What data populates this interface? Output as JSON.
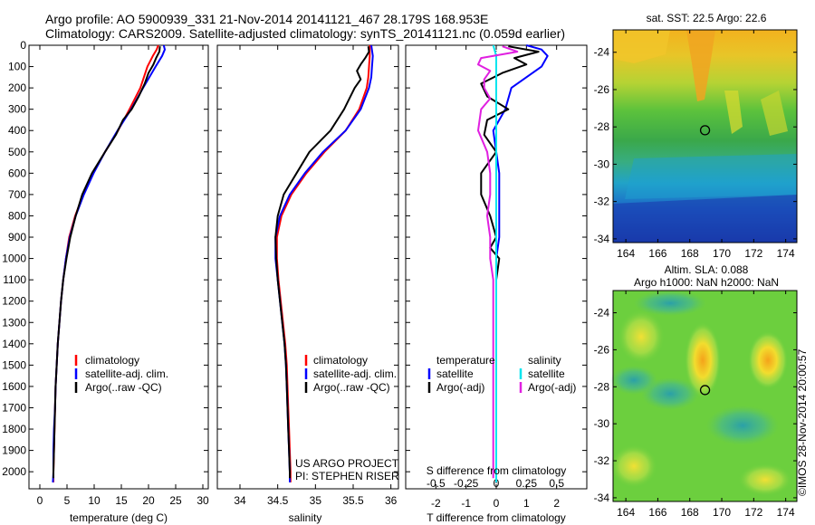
{
  "header": {
    "line1": "Argo profile: AO 5900939_331 21-Nov-2014 20141121_467 28.179S 168.953E",
    "line2": "Climatology: CARS2009. Satellite-adjusted climatology: synTS_20141121.nc (0.059d earlier)"
  },
  "colors": {
    "climatology": "#ff0000",
    "satellite": "#0000ff",
    "argo": "#000000",
    "salinity_satellite": "#00e5ee",
    "salinity_argo": "#e020e0"
  },
  "side_text": {
    "watermark": "©IMOS 28-Nov-2014 20:00:57",
    "project": "US ARGO PROJECT",
    "pi": "PI: STEPHEN RISER"
  },
  "chart_data": [
    {
      "type": "line",
      "id": "temperature",
      "xlabel": "temperature (deg C)",
      "xlim": [
        -2,
        31
      ],
      "ylim": [
        2080,
        0
      ],
      "xticks": [
        0,
        5,
        10,
        15,
        20,
        25,
        30
      ],
      "yticks": [
        0,
        100,
        200,
        300,
        400,
        500,
        600,
        700,
        800,
        900,
        1000,
        1100,
        1200,
        1300,
        1400,
        1500,
        1600,
        1700,
        1800,
        1900,
        2000
      ],
      "legend": [
        "climatology",
        "satellite-adj. clim.",
        "Argo(..raw -QC)"
      ],
      "series": [
        {
          "name": "climatology",
          "color": "#ff0000",
          "points": [
            [
              21.8,
              0
            ],
            [
              21.5,
              20
            ],
            [
              20.8,
              50
            ],
            [
              19.8,
              100
            ],
            [
              18.5,
              200
            ],
            [
              16.5,
              300
            ],
            [
              14.4,
              400
            ],
            [
              12.0,
              500
            ],
            [
              9.8,
              600
            ],
            [
              8.0,
              700
            ],
            [
              6.5,
              800
            ],
            [
              5.4,
              900
            ],
            [
              4.8,
              1000
            ],
            [
              4.3,
              1100
            ],
            [
              3.9,
              1200
            ],
            [
              3.6,
              1300
            ],
            [
              3.3,
              1400
            ],
            [
              3.1,
              1500
            ],
            [
              2.9,
              1600
            ],
            [
              2.8,
              1700
            ],
            [
              2.7,
              1800
            ],
            [
              2.6,
              1900
            ],
            [
              2.5,
              2000
            ],
            [
              2.5,
              2050
            ]
          ]
        },
        {
          "name": "satellite-adj. clim.",
          "color": "#0000ff",
          "points": [
            [
              22.8,
              0
            ],
            [
              23.0,
              20
            ],
            [
              22.5,
              50
            ],
            [
              21.3,
              100
            ],
            [
              19.0,
              200
            ],
            [
              16.8,
              300
            ],
            [
              14.3,
              400
            ],
            [
              12.0,
              500
            ],
            [
              9.9,
              600
            ],
            [
              8.1,
              700
            ],
            [
              6.6,
              800
            ],
            [
              5.5,
              900
            ],
            [
              4.8,
              1000
            ],
            [
              4.3,
              1100
            ],
            [
              3.9,
              1200
            ],
            [
              3.6,
              1300
            ],
            [
              3.3,
              1400
            ],
            [
              3.1,
              1500
            ],
            [
              2.9,
              1600
            ],
            [
              2.8,
              1700
            ],
            [
              2.6,
              1800
            ],
            [
              2.5,
              1900
            ],
            [
              2.5,
              2000
            ],
            [
              2.4,
              2050
            ]
          ]
        },
        {
          "name": "Argo(..raw -QC)",
          "color": "#000000",
          "points": [
            [
              22.1,
              5
            ],
            [
              22.0,
              30
            ],
            [
              21.4,
              60
            ],
            [
              20.9,
              90
            ],
            [
              20.0,
              130
            ],
            [
              19.3,
              180
            ],
            [
              18.2,
              240
            ],
            [
              16.9,
              300
            ],
            [
              15.3,
              350
            ],
            [
              14.0,
              420
            ],
            [
              12.0,
              500
            ],
            [
              9.6,
              600
            ],
            [
              7.8,
              700
            ],
            [
              6.6,
              800
            ],
            [
              5.6,
              900
            ],
            [
              4.9,
              1000
            ],
            [
              4.3,
              1100
            ],
            [
              3.9,
              1200
            ],
            [
              3.6,
              1300
            ],
            [
              3.3,
              1400
            ],
            [
              3.1,
              1500
            ],
            [
              2.9,
              1600
            ],
            [
              2.8,
              1700
            ],
            [
              2.7,
              1800
            ],
            [
              2.6,
              1900
            ],
            [
              2.5,
              2000
            ],
            [
              2.5,
              2030
            ]
          ]
        }
      ]
    },
    {
      "type": "line",
      "id": "salinity",
      "xlabel": "salinity",
      "xlim": [
        33.7,
        36.1
      ],
      "ylim": [
        2080,
        0
      ],
      "xticks": [
        34,
        34.5,
        35,
        35.5,
        36
      ],
      "legend": [
        "climatology",
        "satellite-adj. clim.",
        "Argo(..raw -QC)"
      ],
      "series": [
        {
          "name": "climatology",
          "color": "#ff0000",
          "points": [
            [
              35.72,
              0
            ],
            [
              35.72,
              50
            ],
            [
              35.71,
              100
            ],
            [
              35.7,
              150
            ],
            [
              35.68,
              200
            ],
            [
              35.58,
              300
            ],
            [
              35.4,
              400
            ],
            [
              35.12,
              500
            ],
            [
              34.88,
              600
            ],
            [
              34.68,
              700
            ],
            [
              34.55,
              800
            ],
            [
              34.49,
              900
            ],
            [
              34.49,
              1000
            ],
            [
              34.51,
              1100
            ],
            [
              34.54,
              1200
            ],
            [
              34.57,
              1300
            ],
            [
              34.6,
              1400
            ],
            [
              34.62,
              1500
            ],
            [
              34.63,
              1600
            ],
            [
              34.64,
              1700
            ],
            [
              34.65,
              1800
            ],
            [
              34.66,
              1900
            ],
            [
              34.67,
              2000
            ],
            [
              34.67,
              2050
            ]
          ]
        },
        {
          "name": "satellite-adj. clim.",
          "color": "#0000ff",
          "points": [
            [
              35.74,
              0
            ],
            [
              35.76,
              50
            ],
            [
              35.75,
              100
            ],
            [
              35.74,
              150
            ],
            [
              35.71,
              200
            ],
            [
              35.6,
              300
            ],
            [
              35.4,
              400
            ],
            [
              35.1,
              500
            ],
            [
              34.86,
              600
            ],
            [
              34.66,
              700
            ],
            [
              34.53,
              800
            ],
            [
              34.47,
              900
            ],
            [
              34.47,
              1000
            ],
            [
              34.5,
              1100
            ],
            [
              34.53,
              1200
            ],
            [
              34.56,
              1300
            ],
            [
              34.59,
              1400
            ],
            [
              34.61,
              1500
            ],
            [
              34.62,
              1600
            ],
            [
              34.63,
              1700
            ],
            [
              34.64,
              1800
            ],
            [
              34.65,
              1900
            ],
            [
              34.66,
              2000
            ],
            [
              34.66,
              2050
            ]
          ]
        },
        {
          "name": "Argo(..raw -QC)",
          "color": "#000000",
          "points": [
            [
              35.7,
              5
            ],
            [
              35.71,
              30
            ],
            [
              35.66,
              60
            ],
            [
              35.6,
              90
            ],
            [
              35.55,
              120
            ],
            [
              35.6,
              160
            ],
            [
              35.52,
              200
            ],
            [
              35.45,
              250
            ],
            [
              35.38,
              300
            ],
            [
              35.2,
              400
            ],
            [
              34.92,
              500
            ],
            [
              34.75,
              600
            ],
            [
              34.58,
              700
            ],
            [
              34.5,
              800
            ],
            [
              34.47,
              900
            ],
            [
              34.48,
              1000
            ],
            [
              34.5,
              1100
            ],
            [
              34.53,
              1200
            ],
            [
              34.56,
              1300
            ],
            [
              34.59,
              1400
            ],
            [
              34.61,
              1500
            ],
            [
              34.62,
              1600
            ],
            [
              34.63,
              1700
            ],
            [
              34.64,
              1800
            ],
            [
              34.65,
              1900
            ],
            [
              34.66,
              2000
            ],
            [
              34.66,
              2030
            ]
          ]
        }
      ]
    },
    {
      "type": "line",
      "id": "differences",
      "xlabel_top": "S difference from climatology",
      "xlabel": "T difference from climatology",
      "xticks_T": [
        -2,
        -1,
        0,
        1,
        2
      ],
      "xticks_S_values": [
        -0.5,
        -0.25,
        0,
        0.25,
        0.5
      ],
      "xticks_S_labels": [
        "-0.5",
        "-0.25",
        "0",
        "0.25",
        "0.5"
      ],
      "xlim": [
        -3,
        3
      ],
      "ylim": [
        2080,
        0
      ],
      "legend": {
        "temperature": [
          "satellite",
          "Argo(-adj)"
        ],
        "salinity": [
          "satellite",
          "Argo(-adj)"
        ],
        "temperature_title": "temperature",
        "salinity_title": "salinity"
      },
      "series": [
        {
          "name": "temperature satellite",
          "color": "#0000ff",
          "points": [
            [
              1.0,
              0
            ],
            [
              1.5,
              20
            ],
            [
              1.7,
              50
            ],
            [
              1.5,
              100
            ],
            [
              0.5,
              200
            ],
            [
              0.3,
              300
            ],
            [
              -0.1,
              400
            ],
            [
              0.0,
              500
            ],
            [
              0.1,
              600
            ],
            [
              0.1,
              700
            ],
            [
              0.1,
              800
            ],
            [
              0.1,
              900
            ],
            [
              0.0,
              1000
            ],
            [
              0.0,
              1100
            ],
            [
              0.0,
              2050
            ]
          ]
        },
        {
          "name": "temperature Argo(-adj)",
          "color": "#000000",
          "points": [
            [
              0.4,
              5
            ],
            [
              1.4,
              30
            ],
            [
              0.6,
              60
            ],
            [
              1.0,
              90
            ],
            [
              0.2,
              130
            ],
            [
              -0.5,
              180
            ],
            [
              -0.3,
              240
            ],
            [
              0.4,
              300
            ],
            [
              -0.3,
              350
            ],
            [
              -0.4,
              420
            ],
            [
              0.0,
              500
            ],
            [
              -0.5,
              600
            ],
            [
              -0.5,
              700
            ],
            [
              -0.2,
              800
            ],
            [
              0.0,
              900
            ],
            [
              -0.2,
              950
            ],
            [
              0.1,
              1000
            ],
            [
              0.0,
              1100
            ],
            [
              0.0,
              2030
            ]
          ]
        },
        {
          "name": "salinity satellite",
          "color": "#00e5ee",
          "points": [
            [
              -0.1,
              0
            ],
            [
              0.0,
              50
            ],
            [
              0.0,
              100
            ],
            [
              0.0,
              150
            ],
            [
              0.0,
              200
            ],
            [
              0.0,
              300
            ],
            [
              0.0,
              400
            ],
            [
              0.0,
              500
            ],
            [
              0.0,
              700
            ],
            [
              0.0,
              900
            ],
            [
              0.0,
              1100
            ],
            [
              0.0,
              2050
            ]
          ]
        },
        {
          "name": "salinity Argo(-adj)",
          "color": "#e020e0",
          "points": [
            [
              0.2,
              5
            ],
            [
              0.7,
              30
            ],
            [
              -0.5,
              60
            ],
            [
              -0.6,
              90
            ],
            [
              -0.2,
              120
            ],
            [
              -0.4,
              160
            ],
            [
              -0.4,
              200
            ],
            [
              -0.2,
              250
            ],
            [
              -0.5,
              300
            ],
            [
              -0.6,
              400
            ],
            [
              -0.3,
              500
            ],
            [
              -0.2,
              600
            ],
            [
              -0.2,
              700
            ],
            [
              -0.3,
              800
            ],
            [
              -0.2,
              900
            ],
            [
              -0.2,
              1000
            ],
            [
              -0.1,
              1100
            ],
            [
              -0.1,
              1200
            ],
            [
              -0.1,
              1300
            ],
            [
              -0.1,
              1400
            ],
            [
              -0.1,
              1500
            ],
            [
              -0.1,
              1600
            ],
            [
              -0.1,
              1700
            ],
            [
              -0.1,
              1800
            ],
            [
              -0.1,
              1900
            ],
            [
              -0.1,
              2000
            ],
            [
              -0.1,
              2030
            ]
          ]
        }
      ]
    },
    {
      "type": "heatmap",
      "id": "sst-map",
      "title": "sat. SST: 22.5 Argo: 22.6",
      "xlim": [
        163.2,
        174.7
      ],
      "ylim": [
        -34.2,
        -22.8
      ],
      "xticks": [
        164,
        166,
        168,
        170,
        172,
        174
      ],
      "yticks": [
        -24,
        -26,
        -28,
        -30,
        -32,
        -34
      ],
      "marker": [
        168.953,
        -28.179
      ]
    },
    {
      "type": "heatmap",
      "id": "sla-map",
      "title": "Altim. SLA: 0.088",
      "subtitle": "Argo h1000: NaN h2000: NaN",
      "xlim": [
        163.2,
        174.7
      ],
      "ylim": [
        -34.2,
        -22.8
      ],
      "xticks": [
        164,
        166,
        168,
        170,
        172,
        174
      ],
      "yticks": [
        -24,
        -26,
        -28,
        -30,
        -32,
        -34
      ],
      "marker": [
        168.953,
        -28.179
      ]
    }
  ]
}
